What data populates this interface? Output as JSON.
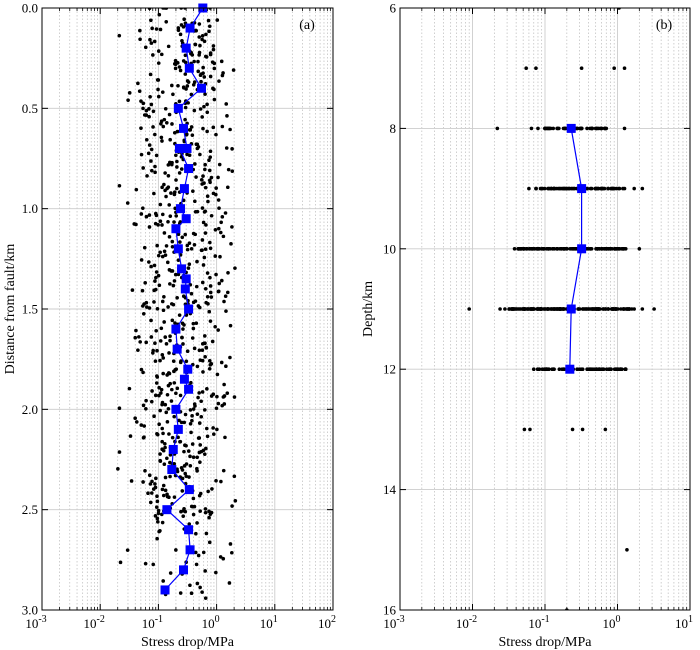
{
  "chart_data": [
    {
      "panel": "(a)",
      "type": "scatter",
      "xscale": "log",
      "xlim": [
        0.001,
        100
      ],
      "ylim": [
        0,
        3.0
      ],
      "y_inverted": true,
      "xlabel": "Stress drop/MPa",
      "ylabel": "Distance from fault/km",
      "xticks": [
        {
          "base": "10",
          "exp": "-3"
        },
        {
          "base": "10",
          "exp": "-2"
        },
        {
          "base": "10",
          "exp": "-1"
        },
        {
          "base": "10",
          "exp": "0"
        },
        {
          "base": "10",
          "exp": "1"
        },
        {
          "base": "10",
          "exp": "2"
        }
      ],
      "yticks": [
        "0.0",
        "0.5",
        "1.0",
        "1.5",
        "2.0",
        "2.5",
        "3.0"
      ],
      "ytick_values": [
        0,
        0.5,
        1.0,
        1.5,
        2.0,
        2.5,
        3.0
      ],
      "grid": "x major solid + minor dotted, y major solid",
      "scatter": {
        "color": "#000000",
        "y_min": 0.0,
        "y_max": 2.9,
        "y_step": 0.1,
        "log_center_main": -0.6,
        "log_spread_main": 0.75,
        "points_per_bin_main": 30,
        "bins_sparse": [
          0,
          2.6,
          2.7,
          2.8,
          2.9
        ],
        "points_per_bin_sparse": 10,
        "seed": 11,
        "note": "Individual event stress drops scattered between ~0.01 and ~2 MPa"
      },
      "median_series": {
        "color": "#0000ff",
        "marker": "square",
        "points": [
          [
            0.58,
            0.0
          ],
          [
            0.35,
            0.1
          ],
          [
            0.3,
            0.2
          ],
          [
            0.34,
            0.3
          ],
          [
            0.55,
            0.4
          ],
          [
            0.22,
            0.5
          ],
          [
            0.27,
            0.6
          ],
          [
            0.31,
            0.7
          ],
          [
            0.23,
            0.7
          ],
          [
            0.33,
            0.8
          ],
          [
            0.28,
            0.9
          ],
          [
            0.24,
            1.0
          ],
          [
            0.3,
            1.05
          ],
          [
            0.2,
            1.1
          ],
          [
            0.22,
            1.2
          ],
          [
            0.25,
            1.3
          ],
          [
            0.3,
            1.35
          ],
          [
            0.29,
            1.4
          ],
          [
            0.33,
            1.5
          ],
          [
            0.2,
            1.6
          ],
          [
            0.21,
            1.7
          ],
          [
            0.32,
            1.8
          ],
          [
            0.28,
            1.85
          ],
          [
            0.33,
            1.9
          ],
          [
            0.2,
            2.0
          ],
          [
            0.22,
            2.1
          ],
          [
            0.18,
            2.2
          ],
          [
            0.17,
            2.3
          ],
          [
            0.34,
            2.4
          ],
          [
            0.14,
            2.5
          ],
          [
            0.33,
            2.6
          ],
          [
            0.35,
            2.7
          ],
          [
            0.27,
            2.8
          ],
          [
            0.13,
            2.9
          ]
        ]
      }
    },
    {
      "panel": "(b)",
      "type": "scatter",
      "xscale": "log",
      "xlim": [
        0.001,
        10
      ],
      "ylim": [
        6,
        16
      ],
      "y_inverted": true,
      "xlabel": "Stress drop/MPa",
      "ylabel": "Depth/km",
      "xticks": [
        {
          "base": "10",
          "exp": "-3"
        },
        {
          "base": "10",
          "exp": "-2"
        },
        {
          "base": "10",
          "exp": "-1"
        },
        {
          "base": "10",
          "exp": "0"
        },
        {
          "base": "10",
          "exp": "1"
        }
      ],
      "yticks": [
        "6",
        "8",
        "10",
        "12",
        "14",
        "16"
      ],
      "ytick_values": [
        6,
        8,
        10,
        12,
        14,
        16
      ],
      "grid": "x major solid + minor dotted, y major solid",
      "scatter": {
        "color": "#000000",
        "note": "Events clustered at discrete depths",
        "rows": [
          {
            "y": 6,
            "x": [
              1.05
            ]
          },
          {
            "y": 7,
            "x": [
              0.055,
              0.075,
              0.32,
              0.9,
              1.25
            ]
          },
          {
            "y": 8,
            "x": [
              0.022,
              0.065,
              0.08,
              0.1,
              0.12,
              0.15,
              0.18,
              0.2,
              0.22,
              0.28,
              0.32,
              0.38,
              0.45,
              0.55,
              0.7,
              1.25
            ],
            "dense_from": 0.09,
            "dense_to": 0.7,
            "dense_n": 40
          },
          {
            "y": 9,
            "x": [
              0.06,
              0.075,
              0.09,
              0.11,
              0.3,
              0.5,
              0.9,
              1.25,
              1.7,
              2.2
            ],
            "dense_from": 0.075,
            "dense_to": 1.2,
            "dense_n": 70
          },
          {
            "y": 10,
            "x": [
              0.038,
              0.048,
              0.055,
              0.065,
              1.3,
              2.0
            ],
            "dense_from": 0.042,
            "dense_to": 1.25,
            "dense_n": 130
          },
          {
            "y": 11,
            "x": [
              0.009,
              0.024,
              0.028,
              0.032,
              0.037,
              1.7,
              2.2,
              3.2
            ],
            "dense_from": 0.032,
            "dense_to": 1.6,
            "dense_n": 190
          },
          {
            "y": 12,
            "x": [
              0.07,
              0.08,
              0.55,
              0.8,
              1.0,
              1.3
            ],
            "dense_from": 0.075,
            "dense_to": 1.3,
            "dense_n": 70
          },
          {
            "y": 13,
            "x": [
              0.052,
              0.062,
              0.24,
              0.33,
              0.68
            ]
          },
          {
            "y": 15,
            "x": [
              1.35
            ]
          },
          {
            "y": 16,
            "x": [
              0.2
            ]
          }
        ]
      },
      "median_series": {
        "color": "#0000ff",
        "marker": "square",
        "points": [
          [
            0.23,
            8
          ],
          [
            0.32,
            9
          ],
          [
            0.32,
            10
          ],
          [
            0.23,
            11
          ],
          [
            0.22,
            12
          ]
        ]
      }
    }
  ]
}
